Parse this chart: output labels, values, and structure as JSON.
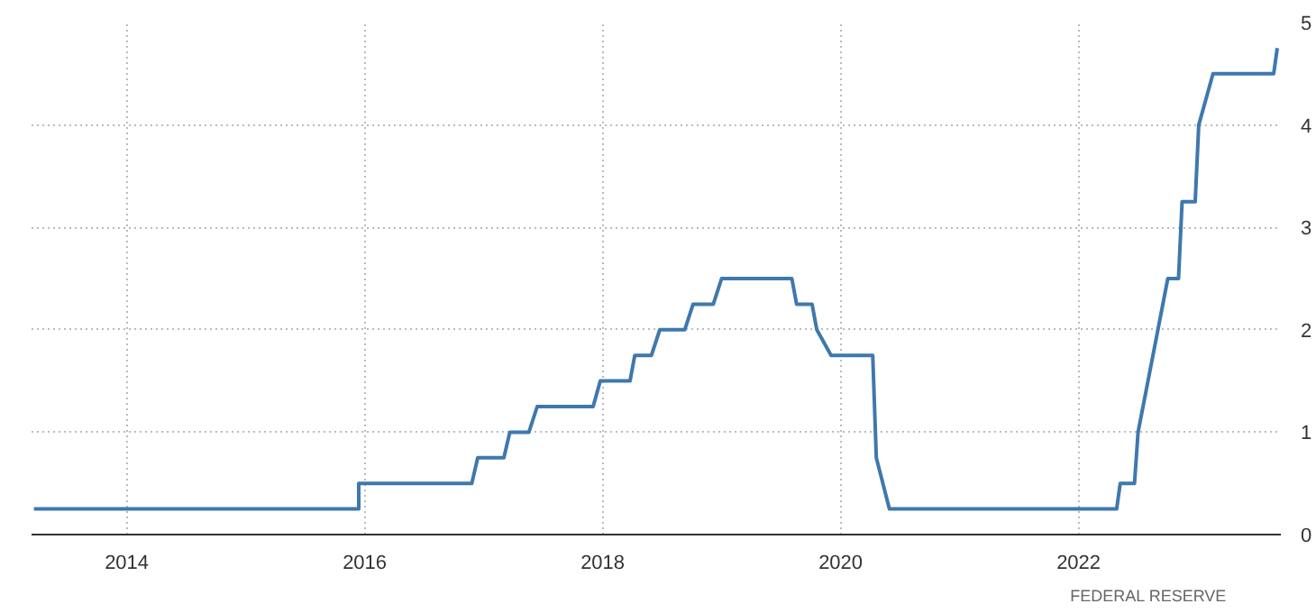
{
  "chart_data": {
    "type": "line",
    "xlim": [
      2013.2,
      2023.7
    ],
    "ylim": [
      0,
      5
    ],
    "xticks": [
      2014,
      2016,
      2018,
      2020,
      2022
    ],
    "yticks": [
      0,
      1,
      2,
      3,
      4,
      5
    ],
    "grid": true,
    "marker": "none",
    "line_style": "solid",
    "annotations": [
      "FEDERAL RESERVE"
    ],
    "series": [
      {
        "color": "#3f78ad",
        "x": [
          2013.22,
          2015.95,
          2015.95,
          2016.9,
          2016.95,
          2017.17,
          2017.22,
          2017.38,
          2017.45,
          2017.92,
          2017.98,
          2018.23,
          2018.27,
          2018.41,
          2018.48,
          2018.69,
          2018.76,
          2018.93,
          2019.0,
          2019.59,
          2019.63,
          2019.76,
          2019.8,
          2019.92,
          2020.27,
          2020.3,
          2020.41,
          2022.32,
          2022.35,
          2022.47,
          2022.5,
          2022.75,
          2022.84,
          2022.87,
          2022.98,
          2023.01,
          2023.13,
          2023.64,
          2023.67
        ],
        "values": [
          0.25,
          0.25,
          0.5,
          0.5,
          0.75,
          0.75,
          1.0,
          1.0,
          1.25,
          1.25,
          1.5,
          1.5,
          1.75,
          1.75,
          2.0,
          2.0,
          2.25,
          2.25,
          2.5,
          2.5,
          2.25,
          2.25,
          2.0,
          1.75,
          1.75,
          0.75,
          0.25,
          0.25,
          0.5,
          0.5,
          1.0,
          2.5,
          2.5,
          3.25,
          3.25,
          4.0,
          4.5,
          4.5,
          4.75
        ]
      }
    ]
  }
}
